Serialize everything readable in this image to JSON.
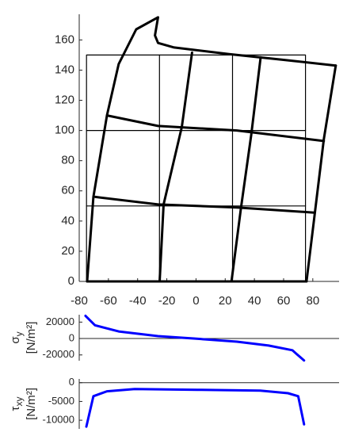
{
  "chart_data": [
    {
      "type": "line",
      "xlim": [
        -80,
        98
      ],
      "ylim": [
        0,
        177
      ],
      "xticks": [
        -80,
        -60,
        -40,
        -20,
        0,
        20,
        40,
        60,
        80
      ],
      "yticks": [
        0,
        20,
        40,
        60,
        80,
        100,
        120,
        140,
        160
      ],
      "series": [
        {
          "color": "#000000",
          "linewidth": 1.2,
          "x": [
            -75,
            75,
            75,
            -75,
            -75
          ],
          "y": [
            0,
            0,
            150,
            150,
            0
          ]
        },
        {
          "color": "#000000",
          "linewidth": 1.2,
          "x": [
            -25,
            -25
          ],
          "y": [
            0,
            150
          ]
        },
        {
          "color": "#000000",
          "linewidth": 1.2,
          "x": [
            25,
            25
          ],
          "y": [
            0,
            150
          ]
        },
        {
          "color": "#000000",
          "linewidth": 1.2,
          "x": [
            -75,
            75
          ],
          "y": [
            50,
            50
          ]
        },
        {
          "color": "#000000",
          "linewidth": 1.2,
          "x": [
            -75,
            75
          ],
          "y": [
            100,
            100
          ]
        },
        {
          "color": "#000000",
          "linewidth": 3,
          "x": [
            -74.6,
            -70.3,
            -61,
            -53,
            -41,
            -26,
            -28.1,
            -26,
            -15,
            22.7,
            58,
            95.7
          ],
          "y": [
            0,
            56,
            110,
            144,
            167,
            175,
            163,
            158,
            155,
            150.6,
            147,
            143
          ]
        },
        {
          "color": "#000000",
          "linewidth": 3,
          "x": [
            95.7,
            87.6,
            75.7
          ],
          "y": [
            143,
            94.4,
            0
          ]
        },
        {
          "color": "#000000",
          "linewidth": 3,
          "x": [
            -74.6,
            75.7
          ],
          "y": [
            0,
            0
          ]
        },
        {
          "color": "#000000",
          "linewidth": 3,
          "x": [
            -2.7,
            -9.7,
            -22.2,
            -24.9
          ],
          "y": [
            151.6,
            102.3,
            51,
            0
          ]
        },
        {
          "color": "#000000",
          "linewidth": 3,
          "x": [
            44.3,
            37.8,
            30.8,
            24.3
          ],
          "y": [
            148.5,
            97,
            48.8,
            0
          ]
        },
        {
          "color": "#000000",
          "linewidth": 3,
          "x": [
            -61,
            -26,
            28,
            87.6
          ],
          "y": [
            110,
            103,
            100,
            93
          ]
        },
        {
          "color": "#000000",
          "linewidth": 3,
          "x": [
            -69,
            -26,
            28,
            81
          ],
          "y": [
            56,
            51,
            49,
            45.6
          ]
        }
      ]
    },
    {
      "type": "line",
      "xlim": [
        -80,
        98
      ],
      "ylim": [
        -27000,
        29000
      ],
      "yticks": [
        -20000,
        0,
        20000
      ],
      "ylabel": {
        "symbol": "σ",
        "subscript": "y",
        "unit": "[N/m²]"
      },
      "series": [
        {
          "color": "#0000ff",
          "linewidth": 3,
          "x": [
            -75.7,
            -69.2,
            -53,
            -26,
            -1.6,
            28,
            49.7,
            66,
            69,
            74
          ],
          "y": [
            27600,
            16200,
            8600,
            2900,
            0,
            -3800,
            -8600,
            -14300,
            -19000,
            -26700
          ]
        }
      ]
    },
    {
      "type": "line",
      "xlim": [
        -80,
        98
      ],
      "ylim": [
        -12300,
        1000
      ],
      "yticks": [
        -10000,
        -5000,
        0
      ],
      "ylabel": {
        "symbol": "τ",
        "subscript": "xy",
        "unit": "[N/m²]"
      },
      "series": [
        {
          "color": "#0000ff",
          "linewidth": 3,
          "x": [
            -75.1,
            -70.3,
            -61,
            -42,
            1,
            44,
            63,
            70,
            74
          ],
          "y": [
            -11700,
            -3600,
            -2300,
            -1700,
            -1900,
            -2100,
            -2800,
            -3600,
            -11100
          ]
        }
      ]
    }
  ]
}
